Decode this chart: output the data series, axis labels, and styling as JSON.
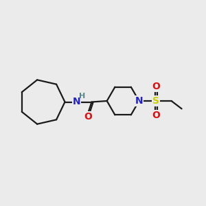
{
  "bg_color": "#ebebeb",
  "bond_color": "#1a1a1a",
  "N_color": "#2222cc",
  "O_color": "#dd1111",
  "S_color": "#cccc00",
  "H_color": "#558888",
  "line_width": 1.6,
  "font_size_atom": 10,
  "font_size_H": 8,
  "xlim": [
    0,
    10
  ],
  "ylim": [
    1,
    8
  ]
}
